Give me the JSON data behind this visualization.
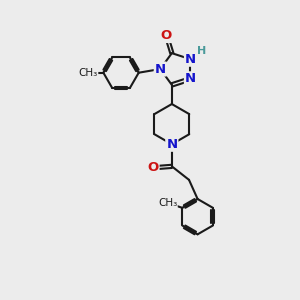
{
  "bg_color": "#ececec",
  "bond_color": "#1a1a1a",
  "N_color": "#1414cc",
  "O_color": "#cc1414",
  "H_color": "#4a9a9a",
  "lw": 1.5,
  "fs": 9.5,
  "fs_small": 8.0,
  "xlim": [
    0,
    10
  ],
  "ylim": [
    0,
    12
  ]
}
